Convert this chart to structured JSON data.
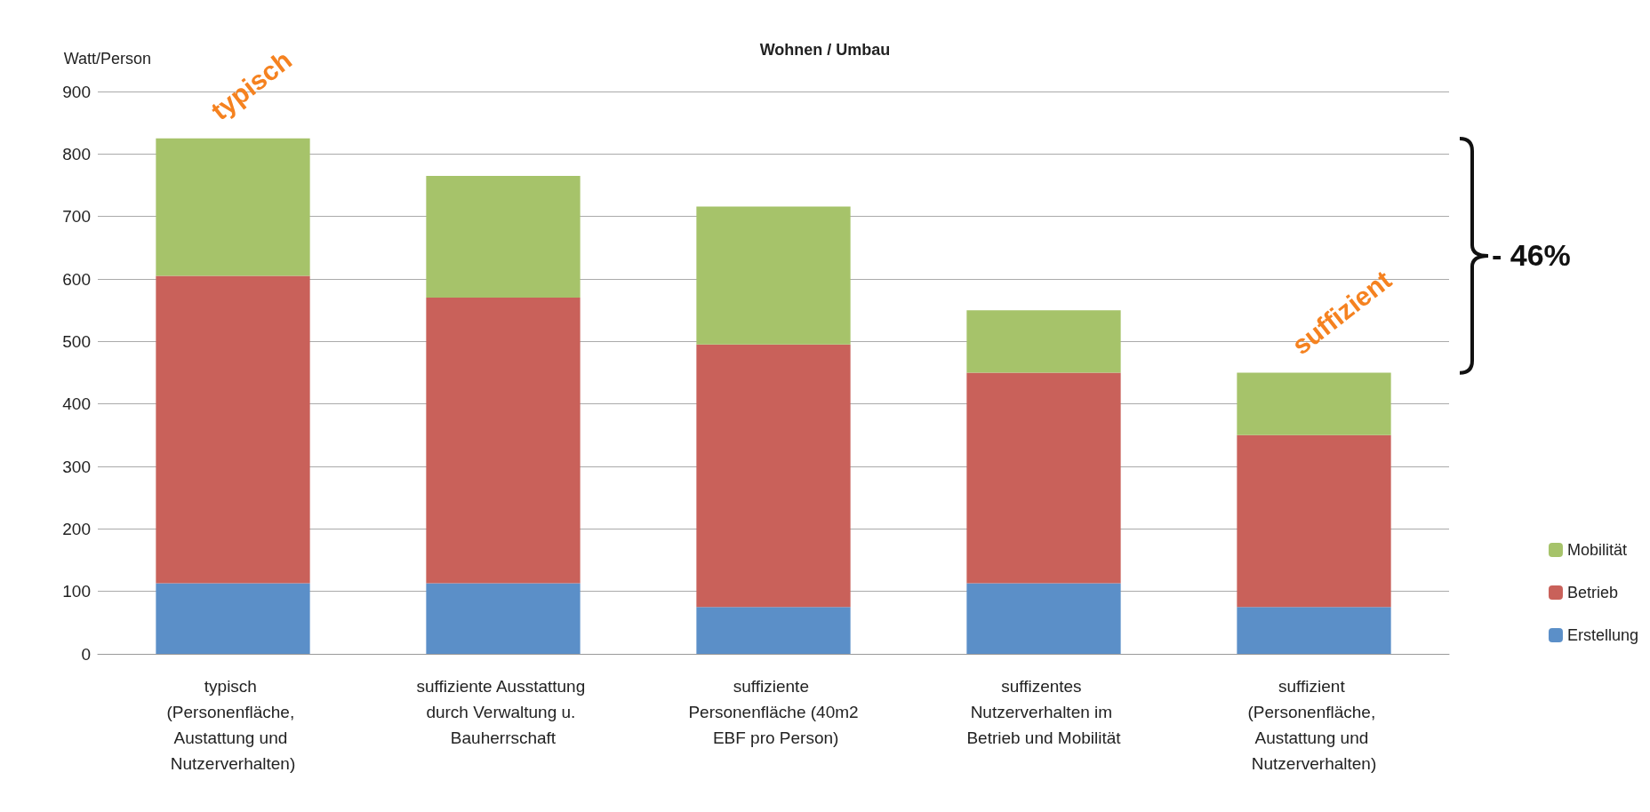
{
  "chart_data": {
    "type": "bar",
    "stacked": true,
    "title": "Wohnen / Umbau",
    "ylabel": "Watt/Person",
    "categories": [
      "typisch (Personenfläche, Austattung und Nutzerverhalten)",
      "suffiziente Ausstattung durch Verwaltung u. Bauherrschaft",
      "suffiziente Personenfläche (40m2 EBF pro Person)",
      "suffizentes Nutzerverhalten im Betrieb und Mobilität",
      "suffizient (Personenfläche, Austattung und Nutzerverhalten)"
    ],
    "series": [
      {
        "name": "Erstellung",
        "color": "#5b8fc8",
        "values": [
          113,
          113,
          75,
          113,
          75
        ]
      },
      {
        "name": "Betrieb",
        "color": "#c9615a",
        "values": [
          492,
          457,
          420,
          337,
          275
        ]
      },
      {
        "name": "Mobilität",
        "color": "#a6c36a",
        "values": [
          220,
          195,
          221,
          100,
          100
        ]
      }
    ],
    "ylim": [
      0,
      900
    ],
    "yticks": [
      0,
      100,
      200,
      300,
      400,
      500,
      600,
      700,
      800,
      900
    ],
    "grid": "y",
    "legend": "right",
    "annotations": [
      {
        "text": "typisch",
        "x": "typisch (Personenfläche, Austattung und Nutzerverhalten)",
        "y": 825
      },
      {
        "text": "suffizient",
        "x": "suffizient (Personenfläche, Austattung und Nutzerverhalten)",
        "y": 450
      },
      "- 46%"
    ]
  }
}
